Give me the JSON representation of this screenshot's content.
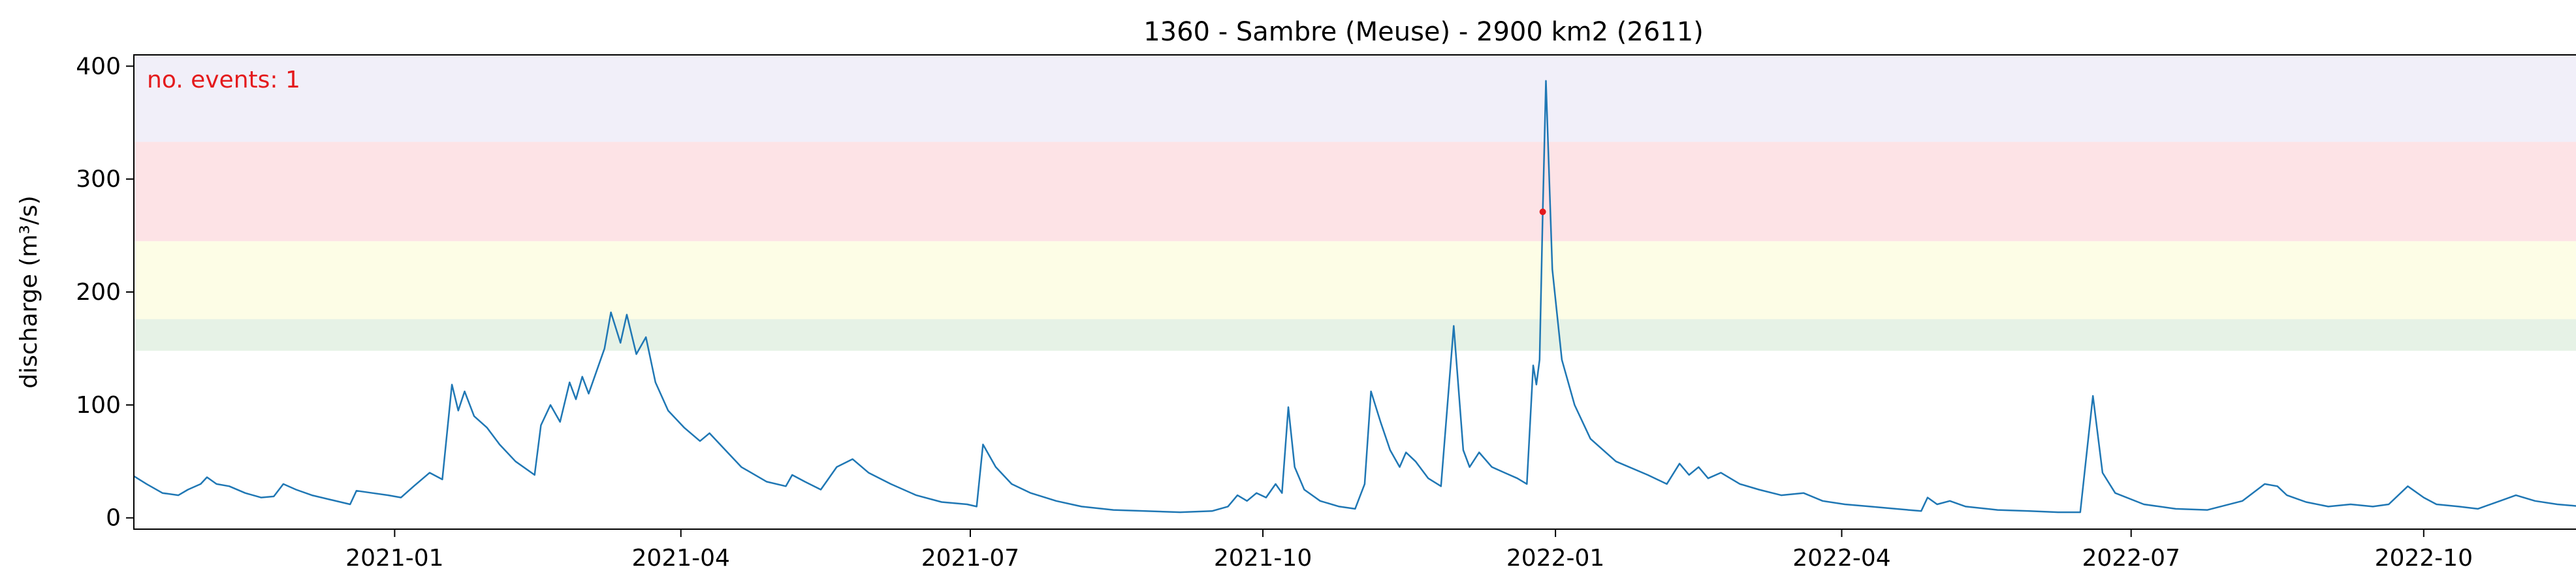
{
  "chart_data": {
    "type": "line",
    "title": "1360 - Sambre (Meuse) - 2900 km2 (2611)",
    "ylabel": "discharge (m³/s)",
    "xlabel": "",
    "xlim": [
      "2020-10-11",
      "2022-12-31"
    ],
    "ylim": [
      -10,
      410
    ],
    "y_ticks": [
      0,
      100,
      200,
      300,
      400
    ],
    "x_ticks": [
      {
        "date": "2021-01-01",
        "label": "2021-01"
      },
      {
        "date": "2021-04-01",
        "label": "2021-04"
      },
      {
        "date": "2021-07-01",
        "label": "2021-07"
      },
      {
        "date": "2021-10-01",
        "label": "2021-10"
      },
      {
        "date": "2022-01-01",
        "label": "2022-01"
      },
      {
        "date": "2022-04-01",
        "label": "2022-04"
      },
      {
        "date": "2022-07-01",
        "label": "2022-07"
      },
      {
        "date": "2022-10-01",
        "label": "2022-10"
      }
    ],
    "grid": false,
    "threshold_bands": [
      {
        "from": 148,
        "to": 176,
        "color": "#e6f2e6"
      },
      {
        "from": 176,
        "to": 245,
        "color": "#fdfde6"
      },
      {
        "from": 245,
        "to": 333,
        "color": "#fde3e6"
      },
      {
        "from": 333,
        "to": 410,
        "color": "#f1eff9"
      }
    ],
    "annotation": {
      "text": "no. events: 1",
      "color": "#e41a1c"
    },
    "series": [
      {
        "color": "#1f77b4",
        "points": [
          [
            "2020-10-11",
            37
          ],
          [
            "2020-10-15",
            30
          ],
          [
            "2020-10-20",
            22
          ],
          [
            "2020-10-25",
            20
          ],
          [
            "2020-10-28",
            25
          ],
          [
            "2020-11-01",
            30
          ],
          [
            "2020-11-03",
            36
          ],
          [
            "2020-11-06",
            30
          ],
          [
            "2020-11-10",
            28
          ],
          [
            "2020-11-15",
            22
          ],
          [
            "2020-11-20",
            18
          ],
          [
            "2020-11-24",
            19
          ],
          [
            "2020-11-27",
            30
          ],
          [
            "2020-12-01",
            25
          ],
          [
            "2020-12-06",
            20
          ],
          [
            "2020-12-12",
            16
          ],
          [
            "2020-12-18",
            12
          ],
          [
            "2020-12-20",
            24
          ],
          [
            "2020-12-25",
            22
          ],
          [
            "2020-12-30",
            20
          ],
          [
            "2021-01-03",
            18
          ],
          [
            "2021-01-07",
            28
          ],
          [
            "2021-01-12",
            40
          ],
          [
            "2021-01-16",
            34
          ],
          [
            "2021-01-19",
            118
          ],
          [
            "2021-01-21",
            95
          ],
          [
            "2021-01-23",
            112
          ],
          [
            "2021-01-26",
            90
          ],
          [
            "2021-01-30",
            80
          ],
          [
            "2021-02-03",
            65
          ],
          [
            "2021-02-08",
            50
          ],
          [
            "2021-02-14",
            38
          ],
          [
            "2021-02-16",
            82
          ],
          [
            "2021-02-19",
            100
          ],
          [
            "2021-02-22",
            85
          ],
          [
            "2021-02-25",
            120
          ],
          [
            "2021-02-27",
            105
          ],
          [
            "2021-03-01",
            125
          ],
          [
            "2021-03-03",
            110
          ],
          [
            "2021-03-08",
            150
          ],
          [
            "2021-03-10",
            182
          ],
          [
            "2021-03-13",
            155
          ],
          [
            "2021-03-15",
            180
          ],
          [
            "2021-03-18",
            145
          ],
          [
            "2021-03-21",
            160
          ],
          [
            "2021-03-24",
            120
          ],
          [
            "2021-03-28",
            95
          ],
          [
            "2021-04-02",
            80
          ],
          [
            "2021-04-07",
            68
          ],
          [
            "2021-04-10",
            75
          ],
          [
            "2021-04-15",
            60
          ],
          [
            "2021-04-20",
            45
          ],
          [
            "2021-04-28",
            32
          ],
          [
            "2021-05-04",
            28
          ],
          [
            "2021-05-06",
            38
          ],
          [
            "2021-05-10",
            32
          ],
          [
            "2021-05-15",
            25
          ],
          [
            "2021-05-20",
            45
          ],
          [
            "2021-05-25",
            52
          ],
          [
            "2021-05-30",
            40
          ],
          [
            "2021-06-06",
            30
          ],
          [
            "2021-06-14",
            20
          ],
          [
            "2021-06-22",
            14
          ],
          [
            "2021-06-30",
            12
          ],
          [
            "2021-07-03",
            10
          ],
          [
            "2021-07-05",
            65
          ],
          [
            "2021-07-09",
            45
          ],
          [
            "2021-07-14",
            30
          ],
          [
            "2021-07-20",
            22
          ],
          [
            "2021-07-28",
            15
          ],
          [
            "2021-08-05",
            10
          ],
          [
            "2021-08-15",
            7
          ],
          [
            "2021-08-25",
            6
          ],
          [
            "2021-09-05",
            5
          ],
          [
            "2021-09-15",
            6
          ],
          [
            "2021-09-20",
            10
          ],
          [
            "2021-09-23",
            20
          ],
          [
            "2021-09-26",
            15
          ],
          [
            "2021-09-29",
            22
          ],
          [
            "2021-10-02",
            18
          ],
          [
            "2021-10-05",
            30
          ],
          [
            "2021-10-07",
            22
          ],
          [
            "2021-10-09",
            98
          ],
          [
            "2021-10-11",
            45
          ],
          [
            "2021-10-14",
            25
          ],
          [
            "2021-10-19",
            15
          ],
          [
            "2021-10-25",
            10
          ],
          [
            "2021-10-30",
            8
          ],
          [
            "2021-11-02",
            30
          ],
          [
            "2021-11-04",
            112
          ],
          [
            "2021-11-07",
            85
          ],
          [
            "2021-11-10",
            60
          ],
          [
            "2021-11-13",
            45
          ],
          [
            "2021-11-15",
            58
          ],
          [
            "2021-11-18",
            50
          ],
          [
            "2021-11-22",
            35
          ],
          [
            "2021-11-26",
            28
          ],
          [
            "2021-11-30",
            170
          ],
          [
            "2021-12-03",
            60
          ],
          [
            "2021-12-05",
            45
          ],
          [
            "2021-12-08",
            58
          ],
          [
            "2021-12-12",
            45
          ],
          [
            "2021-12-16",
            40
          ],
          [
            "2021-12-20",
            35
          ],
          [
            "2021-12-23",
            30
          ],
          [
            "2021-12-25",
            135
          ],
          [
            "2021-12-26",
            118
          ],
          [
            "2021-12-27",
            140
          ],
          [
            "2021-12-28",
            270
          ],
          [
            "2021-12-29",
            387
          ],
          [
            "2021-12-31",
            220
          ],
          [
            "2022-01-03",
            140
          ],
          [
            "2022-01-07",
            100
          ],
          [
            "2022-01-12",
            70
          ],
          [
            "2022-01-20",
            50
          ],
          [
            "2022-01-30",
            38
          ],
          [
            "2022-02-05",
            30
          ],
          [
            "2022-02-09",
            48
          ],
          [
            "2022-02-12",
            38
          ],
          [
            "2022-02-15",
            45
          ],
          [
            "2022-02-18",
            35
          ],
          [
            "2022-02-22",
            40
          ],
          [
            "2022-02-28",
            30
          ],
          [
            "2022-03-06",
            25
          ],
          [
            "2022-03-13",
            20
          ],
          [
            "2022-03-20",
            22
          ],
          [
            "2022-03-26",
            15
          ],
          [
            "2022-04-02",
            12
          ],
          [
            "2022-04-10",
            10
          ],
          [
            "2022-04-18",
            8
          ],
          [
            "2022-04-26",
            6
          ],
          [
            "2022-04-28",
            18
          ],
          [
            "2022-05-01",
            12
          ],
          [
            "2022-05-05",
            15
          ],
          [
            "2022-05-10",
            10
          ],
          [
            "2022-05-20",
            7
          ],
          [
            "2022-05-30",
            6
          ],
          [
            "2022-06-08",
            5
          ],
          [
            "2022-06-15",
            5
          ],
          [
            "2022-06-19",
            108
          ],
          [
            "2022-06-22",
            40
          ],
          [
            "2022-06-26",
            22
          ],
          [
            "2022-07-05",
            12
          ],
          [
            "2022-07-15",
            8
          ],
          [
            "2022-07-25",
            7
          ],
          [
            "2022-08-05",
            15
          ],
          [
            "2022-08-12",
            30
          ],
          [
            "2022-08-16",
            28
          ],
          [
            "2022-08-19",
            20
          ],
          [
            "2022-08-25",
            14
          ],
          [
            "2022-09-01",
            10
          ],
          [
            "2022-09-08",
            12
          ],
          [
            "2022-09-15",
            10
          ],
          [
            "2022-09-20",
            12
          ],
          [
            "2022-09-26",
            28
          ],
          [
            "2022-10-01",
            18
          ],
          [
            "2022-10-05",
            12
          ],
          [
            "2022-10-12",
            10
          ],
          [
            "2022-10-18",
            8
          ],
          [
            "2022-10-25",
            15
          ],
          [
            "2022-10-30",
            20
          ],
          [
            "2022-11-05",
            15
          ],
          [
            "2022-11-12",
            12
          ],
          [
            "2022-11-20",
            10
          ],
          [
            "2022-11-26",
            8
          ],
          [
            "2022-12-02",
            12
          ],
          [
            "2022-12-08",
            8
          ],
          [
            "2022-12-14",
            10
          ],
          [
            "2022-12-18",
            14
          ],
          [
            "2022-12-20",
            28
          ],
          [
            "2022-12-22",
            112
          ],
          [
            "2022-12-24",
            80
          ],
          [
            "2022-12-27",
            65
          ],
          [
            "2022-12-31",
            52
          ]
        ]
      }
    ],
    "events": [
      {
        "date": "2021-12-28",
        "value": 271,
        "color": "#e41a1c"
      }
    ]
  }
}
